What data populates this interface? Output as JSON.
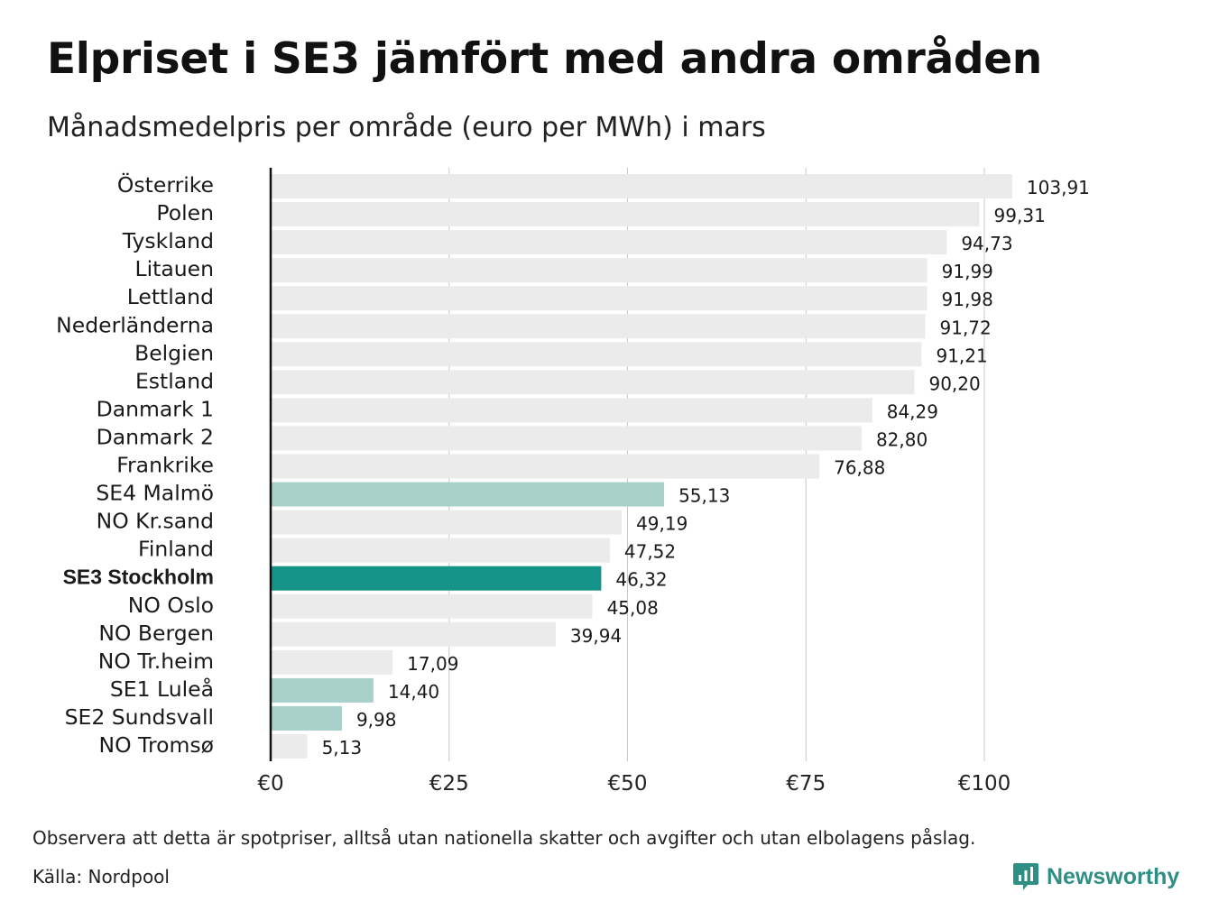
{
  "title": "Elpriset i SE3 jämfört med andra områden",
  "subtitle": "Månadsmedelpris per område (euro per MWh) i mars",
  "footer": {
    "note": "Observera att detta är spotpriser, alltså utan nationella skatter och avgifter och utan elbolagens påslag.",
    "source": "Källa: Nordpool",
    "brand": "Newsworthy",
    "brand_icon": "bar-chart-bubble-icon",
    "brand_color": "#2f8f85"
  },
  "chart_data": {
    "type": "bar",
    "orientation": "horizontal",
    "xlim": [
      0,
      100
    ],
    "x_ticks": [
      0,
      25,
      50,
      75,
      100
    ],
    "x_tick_labels": [
      "€0",
      "€25",
      "€50",
      "€75",
      "€100"
    ],
    "grid": true,
    "categories": [
      "Österrike",
      "Polen",
      "Tyskland",
      "Litauen",
      "Lettland",
      "Nederländerna",
      "Belgien",
      "Estland",
      "Danmark 1",
      "Danmark 2",
      "Frankrike",
      "SE4 Malmö",
      "NO Kr.sand",
      "Finland",
      "SE3 Stockholm",
      "NO Oslo",
      "NO Bergen",
      "NO Tr.heim",
      "SE1 Luleå",
      "SE2 Sundsvall",
      "NO Tromsø"
    ],
    "values": [
      103.91,
      99.31,
      94.73,
      91.99,
      91.98,
      91.72,
      91.21,
      90.2,
      84.29,
      82.8,
      76.88,
      55.13,
      49.19,
      47.52,
      46.32,
      45.08,
      39.94,
      17.09,
      14.4,
      9.98,
      5.13
    ],
    "value_labels": [
      "103,91",
      "99,31",
      "94,73",
      "91,99",
      "91,98",
      "91,72",
      "91,21",
      "90,20",
      "84,29",
      "82,80",
      "76,88",
      "55,13",
      "49,19",
      "47,52",
      "46,32",
      "45,08",
      "39,94",
      "17,09",
      "14,40",
      "9,98",
      "5,13"
    ],
    "highlight_main": "SE3 Stockholm",
    "highlight_secondary": [
      "SE4 Malmö",
      "SE1 Luleå",
      "SE2 Sundsvall"
    ],
    "colors": {
      "default": "#ebebeb",
      "main": "#149488",
      "secondary": "#a7d0ca",
      "grid": "#c8c8c8",
      "axis": "#111111"
    }
  }
}
